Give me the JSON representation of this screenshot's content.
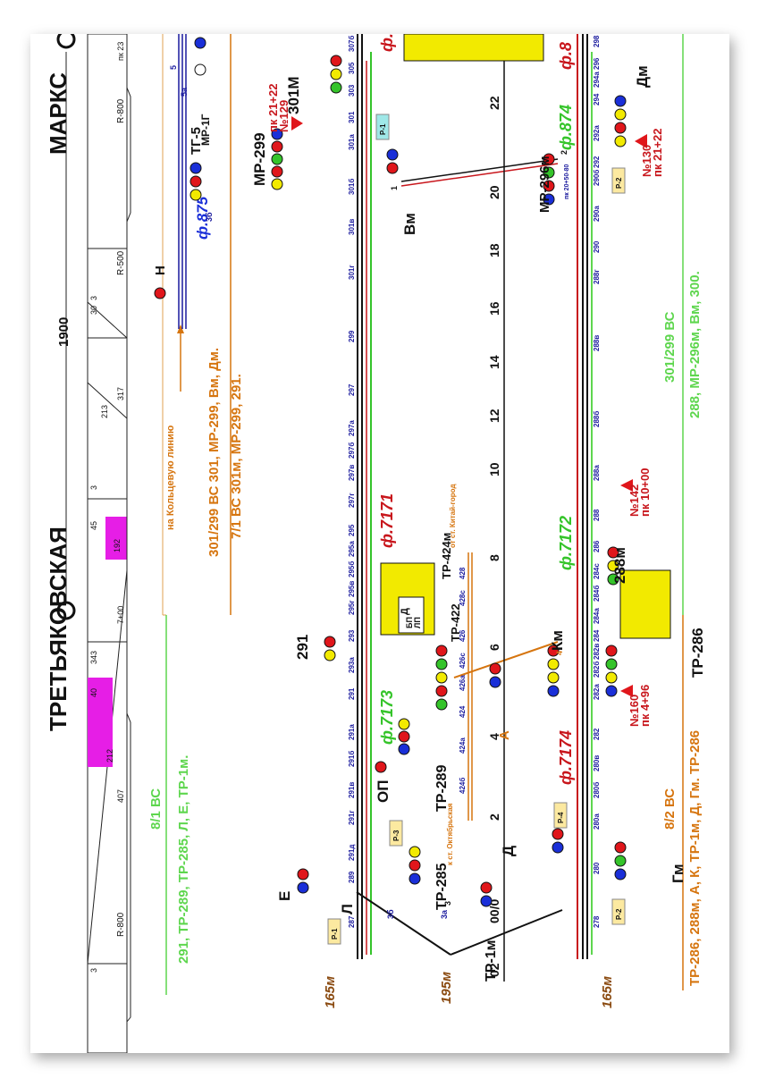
{
  "stations": {
    "left": "ТРЕТЬЯКОВСКАЯ",
    "right": "МАРКС"
  },
  "top_strip": {
    "span_label": "1900",
    "curve_labels": [
      "R-800",
      "R-500",
      "R-800"
    ],
    "pk_label": "пк 23",
    "tick_labels": [
      "3",
      "407",
      "212",
      "343",
      "40",
      "7+00",
      "3",
      "45",
      "192",
      "213",
      "317",
      "30",
      "3"
    ]
  },
  "route_notes": {
    "koltsevaya": "на Кольцевую линию",
    "route1": "301/299 ВС 301, МР-299, Вм, Дм.",
    "route2": "7/1 ВС  301м, МР-299, 291.",
    "left_green_head": "8/1 ВС",
    "left_green": "291, ТР-289, ТР-285, Л, Е, ТР-1м.",
    "right_green_head": "301/299 ВС",
    "right_green": "288, МР-296м, Вм, 300.",
    "right_orange_head": "8/2 ВС",
    "right_orange": "ТР-286, 288м, А, К, ТР-1м, Д, Гм. ТР-286"
  },
  "feeders": {
    "f875": "ф.875",
    "f7171": "ф.7171",
    "f7173": "ф.7173",
    "f874": "ф.874",
    "f7172": "ф.7172",
    "f7174": "ф.7174",
    "f8a": "ф.8",
    "f8b": "ф.8"
  },
  "signals": {
    "tg5": "ТГ-5",
    "mr1g": "МР-1Г",
    "n": "Н",
    "s301m": "301М",
    "mr299": "МР-299",
    "vm": "Вм",
    "mr296m": "МР-296м",
    "dm": "Дм",
    "s291": "291",
    "op": "ОП",
    "tr289": "ТР-289",
    "tr424m": "ТР-424м",
    "tr422": "ТР-422",
    "a": "А",
    "km": "Км",
    "s288m": "288м",
    "tr286": "ТР-286",
    "e": "Е",
    "tr285": "ТР-285",
    "l": "Л",
    "tr1m": "ТР-1м",
    "d": "Д",
    "gm": "Гм"
  },
  "markers": {
    "m129": "№129",
    "pk129": "пк 21+22",
    "m130": "№130",
    "pk130": "пк 21+22",
    "m142": "№142",
    "pk142": "пк 10+00",
    "m160": "№160",
    "pk160": "пк 4+96"
  },
  "track_circuits_upper": [
    "287",
    "289",
    "291д",
    "291г",
    "291в",
    "291б",
    "291а",
    "291",
    "293а",
    "293",
    "295г",
    "295в",
    "295б",
    "295а",
    "295",
    "297г",
    "297в",
    "297б",
    "297а",
    "297",
    "299",
    "301г",
    "301в",
    "301б",
    "301а",
    "301",
    "303",
    "305",
    "307б"
  ],
  "track_circuits_lower": [
    "278",
    "280",
    "280а",
    "280б",
    "280в",
    "282",
    "282а",
    "282б",
    "282в",
    "284",
    "284а",
    "284б",
    "284с",
    "286",
    "288",
    "288а",
    "288б",
    "288в",
    "288г",
    "290",
    "290а",
    "290б",
    "292",
    "292а",
    "294",
    "294а",
    "296",
    "298"
  ],
  "service_tracks": [
    "424б",
    "424а",
    "424",
    "426а",
    "426с",
    "426",
    "428с",
    "428"
  ],
  "km_scale": [
    "02",
    "00/0",
    "2",
    "4",
    "6",
    "8",
    "10",
    "12",
    "14",
    "16",
    "18",
    "20",
    "22"
  ],
  "distances": [
    "165м",
    "195м",
    "165м"
  ],
  "branch_labels": {
    "to_oktyabrskaya": "к ст. Октябрьская",
    "from_kitai_gorod": "от ст. Китай-город"
  },
  "tags": {
    "r1a": "Р-1",
    "r1b": "Р-1",
    "r2a": "Р-2",
    "r2b": "Р-2",
    "r3": "Р-3",
    "r4": "Р-4"
  },
  "equipment_box": {
    "bp": "БП",
    "d": "Д",
    "lp": "ЛП"
  },
  "misc": {
    "pk_speed": "пк 20+50-80",
    "arrow_num_4": "4",
    "n1": "1",
    "n2": "2",
    "n3": "3",
    "n3b": "3б",
    "n3a": "3а",
    "n5": "5",
    "n5a": "5а",
    "n3bb": "3б"
  },
  "colors": {
    "red": "#e0161b",
    "yellow": "#f2ea00",
    "green": "#35c42a",
    "blue": "#1a2fd8",
    "magenta": "#e61ee6",
    "orange": "#d6750f",
    "lightgreen": "#5ed64e",
    "darkred": "#c8161c",
    "navy": "#1a1a9e",
    "black": "#111111"
  }
}
